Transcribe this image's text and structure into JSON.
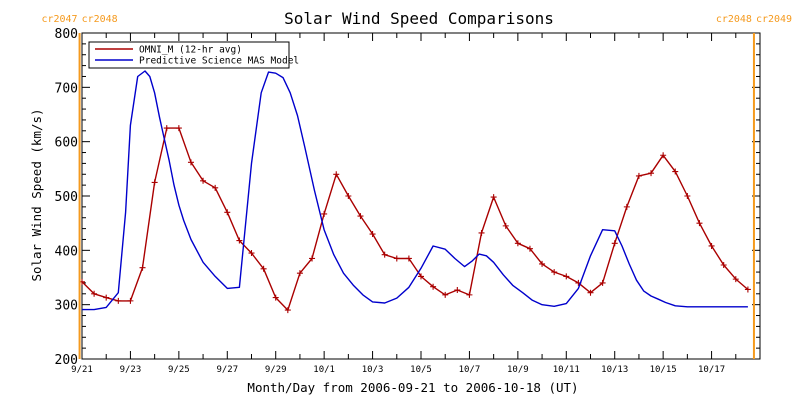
{
  "chart_data": {
    "type": "line",
    "title": "Solar Wind Speed Comparisons",
    "xlabel": "Month/Day from 2006-09-21 to 2006-10-18 (UT)",
    "ylabel": "Solar Wind Speed (km/s)",
    "xlim": [
      0,
      28
    ],
    "ylim": [
      200,
      800
    ],
    "x_ticks": [
      {
        "x": 0,
        "label": "9/21"
      },
      {
        "x": 2,
        "label": "9/23"
      },
      {
        "x": 4,
        "label": "9/25"
      },
      {
        "x": 6,
        "label": "9/27"
      },
      {
        "x": 8,
        "label": "9/29"
      },
      {
        "x": 10,
        "label": "10/1"
      },
      {
        "x": 12,
        "label": "10/3"
      },
      {
        "x": 14,
        "label": "10/5"
      },
      {
        "x": 16,
        "label": "10/7"
      },
      {
        "x": 18,
        "label": "10/9"
      },
      {
        "x": 20,
        "label": "10/11"
      },
      {
        "x": 22,
        "label": "10/13"
      },
      {
        "x": 24,
        "label": "10/15"
      },
      {
        "x": 26,
        "label": "10/17"
      }
    ],
    "y_ticks": [
      200,
      300,
      400,
      500,
      600,
      700,
      800
    ],
    "legend_position": "top-left",
    "series": [
      {
        "name": "OMNI_M (12-hr avg)",
        "color": "#aa0000",
        "marker": "plus",
        "x": [
          0.0,
          0.5,
          1.0,
          1.5,
          2.0,
          2.5,
          3.0,
          3.5,
          4.0,
          4.5,
          5.0,
          5.5,
          6.0,
          6.5,
          7.0,
          7.5,
          8.0,
          8.5,
          9.0,
          9.5,
          10.0,
          10.5,
          11.0,
          11.5,
          12.0,
          12.5,
          13.0,
          13.5,
          14.0,
          14.5,
          15.0,
          15.5,
          16.0,
          16.5,
          17.0,
          17.5,
          18.0,
          18.5,
          19.0,
          19.5,
          20.0,
          20.5,
          21.0,
          21.5,
          22.0,
          22.5,
          23.0,
          23.5,
          24.0,
          24.5,
          25.0,
          25.5,
          26.0,
          26.5,
          27.0,
          27.5
        ],
        "y": [
          342,
          320,
          313,
          307,
          307,
          368,
          525,
          625,
          625,
          562,
          528,
          515,
          470,
          418,
          395,
          366,
          313,
          290,
          358,
          385,
          467,
          540,
          500,
          463,
          430,
          392,
          385,
          385,
          352,
          333,
          318,
          327,
          318,
          432,
          498,
          445,
          413,
          403,
          375,
          360,
          352,
          340,
          322,
          340,
          413,
          480,
          537,
          542,
          575,
          545,
          500,
          450,
          408,
          373,
          347,
          328
        ]
      },
      {
        "name": "Predictive Science MAS Model",
        "color": "#0000cc",
        "marker": "none",
        "x": [
          0.0,
          0.5,
          1.0,
          1.5,
          1.8,
          2.0,
          2.3,
          2.6,
          2.8,
          3.0,
          3.2,
          3.4,
          3.6,
          3.8,
          4.0,
          4.2,
          4.5,
          5.0,
          5.5,
          6.0,
          6.5,
          7.0,
          7.4,
          7.7,
          8.0,
          8.3,
          8.6,
          8.9,
          9.2,
          9.6,
          10.0,
          10.4,
          10.8,
          11.2,
          11.6,
          12.0,
          12.5,
          13.0,
          13.5,
          14.0,
          14.5,
          15.0,
          15.4,
          15.8,
          16.1,
          16.4,
          16.7,
          17.0,
          17.4,
          17.8,
          18.2,
          18.6,
          19.0,
          19.5,
          20.0,
          20.5,
          21.0,
          21.5,
          22.0,
          22.3,
          22.6,
          22.9,
          23.2,
          23.5,
          23.8,
          24.1,
          24.5,
          25.0,
          25.5,
          26.0,
          26.5,
          27.0,
          27.5
        ],
        "y": [
          291,
          291,
          295,
          322,
          470,
          630,
          720,
          730,
          720,
          690,
          645,
          605,
          565,
          520,
          483,
          455,
          420,
          378,
          352,
          330,
          332,
          560,
          690,
          728,
          726,
          718,
          690,
          648,
          590,
          510,
          438,
          392,
          358,
          336,
          318,
          305,
          303,
          312,
          332,
          367,
          408,
          402,
          385,
          370,
          380,
          393,
          390,
          378,
          355,
          335,
          322,
          308,
          300,
          297,
          302,
          330,
          390,
          438,
          436,
          408,
          375,
          345,
          325,
          316,
          310,
          304,
          298,
          296,
          296,
          296,
          296,
          296,
          296
        ]
      }
    ],
    "carrington_markers": [
      {
        "x": -0.1,
        "left_label": "cr2047",
        "right_label": "cr2048"
      },
      {
        "x": 27.75,
        "left_label": "cr2048",
        "right_label": "cr2049"
      }
    ],
    "marker_color": "#f59a1e"
  }
}
